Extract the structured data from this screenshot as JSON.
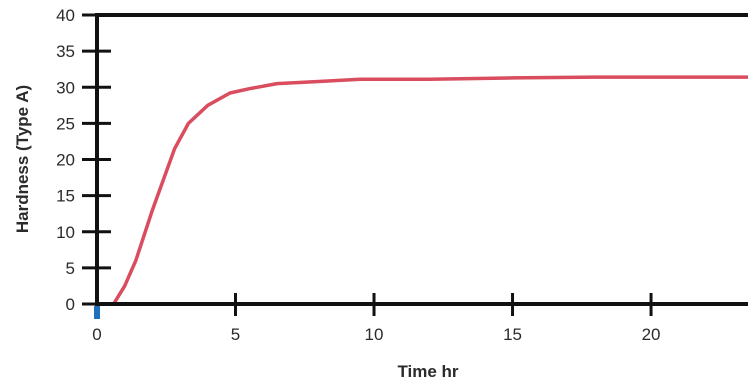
{
  "chart_data": {
    "type": "line",
    "title": "",
    "xlabel": "Time hr",
    "ylabel": "Hardness (Type A)",
    "xlim": [
      0,
      23.5
    ],
    "ylim": [
      0,
      40
    ],
    "x_ticks": [
      0,
      5,
      10,
      15,
      20
    ],
    "y_ticks": [
      0,
      5,
      10,
      15,
      20,
      25,
      30,
      35,
      40
    ],
    "x_tick_labels": [
      "0",
      "5",
      "10",
      "15",
      "20"
    ],
    "y_tick_labels": [
      "0",
      "5",
      "10",
      "15",
      "20",
      "25",
      "30",
      "35",
      "40"
    ],
    "grid": false,
    "legend": "none",
    "series": [
      {
        "color": "#d94d5f",
        "x": [
          0.6,
          1.0,
          1.4,
          2.0,
          2.8,
          3.3,
          4.0,
          4.8,
          5.5,
          6.5,
          8.0,
          9.5,
          12.0,
          15.0,
          18.0,
          20.0,
          23.5
        ],
        "y": [
          0,
          2.5,
          6.0,
          13.0,
          21.5,
          25.0,
          27.5,
          29.2,
          29.8,
          30.5,
          30.8,
          31.1,
          31.1,
          31.3,
          31.4,
          31.4,
          31.4
        ]
      }
    ],
    "origin_marker_color": "#1f6fbf",
    "axis_color": "#111111"
  }
}
